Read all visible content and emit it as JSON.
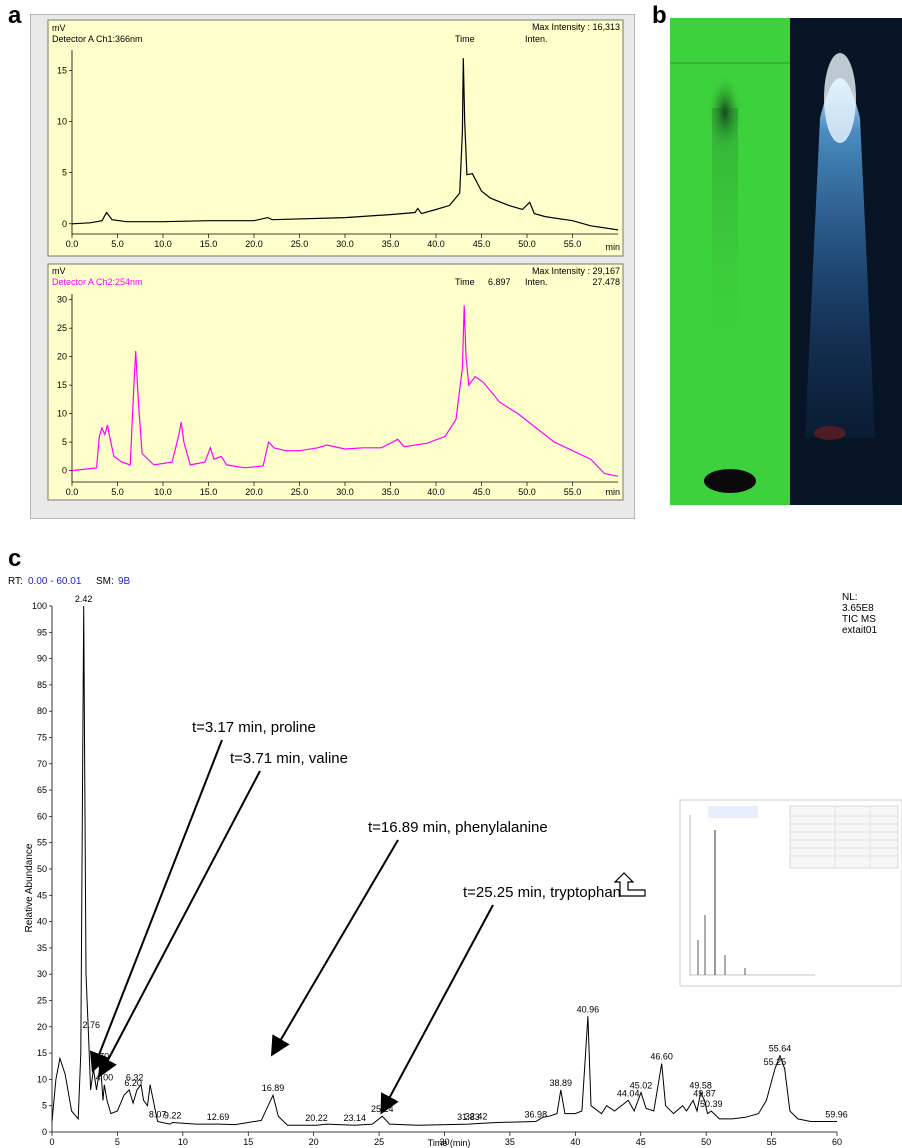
{
  "panel_labels": {
    "a": "a",
    "b": "b",
    "c": "c"
  },
  "colors": {
    "hplc_bg": "#ffffcc",
    "ch1_line": "#000000",
    "ch2_line": "#ff00ff",
    "ms_line": "#000000",
    "tlc_green": "#3dd13d",
    "tlc_uv": "#061426"
  },
  "chart_data": [
    {
      "type": "line",
      "panel": "a-top",
      "ylabel": "mV",
      "detector": "Detector A Ch1:366nm",
      "header_time": "Time",
      "header_inten": "Inten.",
      "max_intensity_label": "Max Intensity : 16,313",
      "xlabel": "min",
      "xlim": [
        0,
        60
      ],
      "ylim": [
        -1,
        17
      ],
      "x_ticks": [
        "0.0",
        "5.0",
        "10.0",
        "15.0",
        "20.0",
        "25.0",
        "30.0",
        "35.0",
        "40.0",
        "45.0",
        "50.0",
        "55.0"
      ],
      "y_ticks": [
        "0",
        "5",
        "10",
        "15"
      ],
      "series": [
        {
          "color": "#000000",
          "points": [
            [
              0,
              0
            ],
            [
              2,
              0.1
            ],
            [
              3.3,
              0.3
            ],
            [
              3.8,
              1.1
            ],
            [
              4.4,
              0.4
            ],
            [
              6,
              0.2
            ],
            [
              10,
              0.2
            ],
            [
              15,
              0.3
            ],
            [
              20,
              0.3
            ],
            [
              21.5,
              0.6
            ],
            [
              22,
              0.4
            ],
            [
              30,
              0.6
            ],
            [
              35,
              0.9
            ],
            [
              37.7,
              1.1
            ],
            [
              38,
              1.5
            ],
            [
              38.4,
              1.0
            ],
            [
              40,
              1.4
            ],
            [
              41.5,
              1.8
            ],
            [
              42.6,
              3.0
            ],
            [
              42.9,
              9.0
            ],
            [
              43.0,
              16.2
            ],
            [
              43.15,
              10.0
            ],
            [
              43.4,
              4.8
            ],
            [
              44,
              4.9
            ],
            [
              45,
              3.2
            ],
            [
              46,
              2.5
            ],
            [
              48,
              1.8
            ],
            [
              49.5,
              1.4
            ],
            [
              50.3,
              2.1
            ],
            [
              50.8,
              1.0
            ],
            [
              52,
              0.7
            ],
            [
              55,
              0.3
            ],
            [
              57,
              -0.2
            ],
            [
              60,
              -0.6
            ]
          ]
        }
      ]
    },
    {
      "type": "line",
      "panel": "a-bottom",
      "ylabel": "mV",
      "detector": "Detector A Ch2:254nm",
      "header_time": "Time",
      "header_time_value": "6.897",
      "header_inten": "Inten.",
      "header_inten_value": "27.478",
      "max_intensity_label": "Max Intensity : 29,167",
      "xlabel": "min",
      "xlim": [
        0,
        60
      ],
      "ylim": [
        -2,
        31
      ],
      "x_ticks": [
        "0.0",
        "5.0",
        "10.0",
        "15.0",
        "20.0",
        "25.0",
        "30.0",
        "35.0",
        "40.0",
        "45.0",
        "50.0",
        "55.0"
      ],
      "y_ticks": [
        "0",
        "5",
        "10",
        "15",
        "20",
        "25",
        "30"
      ],
      "series": [
        {
          "color": "#ff00ff",
          "points": [
            [
              0,
              0
            ],
            [
              2.7,
              0.5
            ],
            [
              3.0,
              6.0
            ],
            [
              3.3,
              7.5
            ],
            [
              3.6,
              6.3
            ],
            [
              3.9,
              8.0
            ],
            [
              4.2,
              5.5
            ],
            [
              4.6,
              2.5
            ],
            [
              5.5,
              1.5
            ],
            [
              6.4,
              1.0
            ],
            [
              6.8,
              15.0
            ],
            [
              7.0,
              21.0
            ],
            [
              7.3,
              12.0
            ],
            [
              7.7,
              3.0
            ],
            [
              9,
              1.0
            ],
            [
              11,
              1.5
            ],
            [
              11.7,
              6.0
            ],
            [
              12,
              8.5
            ],
            [
              12.3,
              5.0
            ],
            [
              13,
              1.0
            ],
            [
              14.6,
              1.5
            ],
            [
              15.2,
              4.0
            ],
            [
              15.6,
              2.0
            ],
            [
              16.4,
              2.5
            ],
            [
              17,
              1.0
            ],
            [
              19,
              0.5
            ],
            [
              21,
              0.8
            ],
            [
              21.6,
              5.0
            ],
            [
              22.2,
              4.0
            ],
            [
              23.5,
              3.5
            ],
            [
              25,
              3.5
            ],
            [
              27,
              4.0
            ],
            [
              28,
              4.5
            ],
            [
              30,
              3.8
            ],
            [
              32,
              4.0
            ],
            [
              34,
              4.0
            ],
            [
              35.8,
              5.5
            ],
            [
              36.5,
              4.2
            ],
            [
              39,
              4.8
            ],
            [
              41,
              6.0
            ],
            [
              42.2,
              9.0
            ],
            [
              42.9,
              18.0
            ],
            [
              43.1,
              29.0
            ],
            [
              43.3,
              20.0
            ],
            [
              43.6,
              15.0
            ],
            [
              44.3,
              16.5
            ],
            [
              45.2,
              15.5
            ],
            [
              47,
              12.0
            ],
            [
              49,
              10.0
            ],
            [
              51,
              7.5
            ],
            [
              53,
              5.0
            ],
            [
              55,
              3.5
            ],
            [
              57,
              2.0
            ],
            [
              58.5,
              -0.5
            ],
            [
              60,
              -1.0
            ]
          ]
        }
      ]
    },
    {
      "type": "line",
      "panel": "c",
      "header_rt": "RT:",
      "header_rt_value": "0.00 - 60.01",
      "header_sm": "SM:",
      "header_sm_value": "9B",
      "info_lines": [
        "NL:",
        "3.65E8",
        "TIC  MS",
        "extait01"
      ],
      "xlabel": "Time (min)",
      "ylabel": "Relative Abundance",
      "xlim": [
        0,
        60
      ],
      "ylim": [
        0,
        100
      ],
      "x_ticks": [
        "0",
        "5",
        "10",
        "15",
        "20",
        "25",
        "30",
        "35",
        "40",
        "45",
        "50",
        "55",
        "60"
      ],
      "y_ticks": [
        "0",
        "5",
        "10",
        "15",
        "20",
        "25",
        "30",
        "35",
        "40",
        "45",
        "50",
        "55",
        "60",
        "65",
        "70",
        "75",
        "80",
        "85",
        "90",
        "95",
        "100"
      ],
      "series": [
        {
          "color": "#000000",
          "points": [
            [
              0,
              2
            ],
            [
              0.3,
              10
            ],
            [
              0.6,
              14
            ],
            [
              1.0,
              11
            ],
            [
              1.5,
              4
            ],
            [
              2.0,
              2.5
            ],
            [
              2.2,
              15
            ],
            [
              2.42,
              100
            ],
            [
              2.6,
              30
            ],
            [
              2.8,
              18
            ],
            [
              2.95,
              8
            ],
            [
              3.17,
              12
            ],
            [
              3.4,
              8
            ],
            [
              3.7,
              13
            ],
            [
              3.9,
              6
            ],
            [
              4.0,
              9
            ],
            [
              4.2,
              6
            ],
            [
              4.5,
              3.5
            ],
            [
              5.0,
              4
            ],
            [
              5.5,
              7
            ],
            [
              5.9,
              8
            ],
            [
              6.2,
              5.5
            ],
            [
              6.5,
              8
            ],
            [
              6.8,
              9
            ],
            [
              7.0,
              6
            ],
            [
              7.3,
              5
            ],
            [
              7.5,
              9
            ],
            [
              7.9,
              4
            ],
            [
              8.07,
              2
            ],
            [
              9,
              1.5
            ],
            [
              9.22,
              1.8
            ],
            [
              11,
              1.5
            ],
            [
              12.69,
              1.5
            ],
            [
              14,
              1.4
            ],
            [
              16,
              2.2
            ],
            [
              16.89,
              7
            ],
            [
              17.3,
              3
            ],
            [
              18,
              1.3
            ],
            [
              20.22,
              1.3
            ],
            [
              21,
              1.5
            ],
            [
              23.14,
              1.3
            ],
            [
              24.5,
              1.5
            ],
            [
              25.24,
              3
            ],
            [
              25.8,
              1.5
            ],
            [
              28,
              1.3
            ],
            [
              31.83,
              1.5
            ],
            [
              32.42,
              1.6
            ],
            [
              34,
              1.8
            ],
            [
              36.98,
              2
            ],
            [
              37.5,
              2.8
            ],
            [
              38,
              3
            ],
            [
              38.6,
              3.5
            ],
            [
              38.89,
              8
            ],
            [
              39.2,
              3.5
            ],
            [
              40,
              3.5
            ],
            [
              40.5,
              4
            ],
            [
              40.96,
              22
            ],
            [
              41.2,
              5
            ],
            [
              42,
              3.5
            ],
            [
              42.4,
              5
            ],
            [
              43,
              4
            ],
            [
              44.04,
              6
            ],
            [
              44.5,
              4
            ],
            [
              45.02,
              7.5
            ],
            [
              45.4,
              4.5
            ],
            [
              46,
              4
            ],
            [
              46.6,
              13
            ],
            [
              46.9,
              5
            ],
            [
              47.5,
              3.5
            ],
            [
              48.2,
              5
            ],
            [
              48.5,
              4
            ],
            [
              49.0,
              6
            ],
            [
              49.3,
              4
            ],
            [
              49.58,
              7.5
            ],
            [
              49.87,
              6
            ],
            [
              50.1,
              3.5
            ],
            [
              50.39,
              4
            ],
            [
              51,
              2.5
            ],
            [
              52,
              2.5
            ],
            [
              53,
              2.8
            ],
            [
              54,
              3.5
            ],
            [
              54.6,
              6
            ],
            [
              55.25,
              12
            ],
            [
              55.64,
              14.5
            ],
            [
              56,
              12
            ],
            [
              56.4,
              4
            ],
            [
              57,
              2.5
            ],
            [
              58,
              2
            ],
            [
              59.96,
              2
            ],
            [
              60,
              2
            ]
          ]
        }
      ],
      "peak_labels": [
        {
          "x": 2.42,
          "y": 100,
          "text": "2.42"
        },
        {
          "x": 3.0,
          "y": 19,
          "text": "2.76"
        },
        {
          "x": 3.7,
          "y": 13,
          "text": "3.70"
        },
        {
          "x": 4.0,
          "y": 9,
          "text": "4.00"
        },
        {
          "x": 6.2,
          "y": 8,
          "text": "6.20"
        },
        {
          "x": 6.32,
          "y": 9,
          "text": "6.32"
        },
        {
          "x": 8.07,
          "y": 2,
          "text": "8.07"
        },
        {
          "x": 9.22,
          "y": 1.8,
          "text": "9.22"
        },
        {
          "x": 12.69,
          "y": 1.5,
          "text": "12.69"
        },
        {
          "x": 16.89,
          "y": 7,
          "text": "16.89"
        },
        {
          "x": 20.22,
          "y": 1.3,
          "text": "20.22"
        },
        {
          "x": 23.14,
          "y": 1.3,
          "text": "23.14"
        },
        {
          "x": 25.24,
          "y": 3,
          "text": "25.24"
        },
        {
          "x": 31.83,
          "y": 1.5,
          "text": "31.83"
        },
        {
          "x": 32.42,
          "y": 1.6,
          "text": "32.42"
        },
        {
          "x": 36.98,
          "y": 2,
          "text": "36.98"
        },
        {
          "x": 38.89,
          "y": 8,
          "text": "38.89"
        },
        {
          "x": 40.96,
          "y": 22,
          "text": "40.96"
        },
        {
          "x": 44.04,
          "y": 6,
          "text": "44.04"
        },
        {
          "x": 45.02,
          "y": 7.5,
          "text": "45.02"
        },
        {
          "x": 46.6,
          "y": 13,
          "text": "46.60"
        },
        {
          "x": 49.58,
          "y": 7.5,
          "text": "49.58"
        },
        {
          "x": 49.87,
          "y": 6,
          "text": "49.87"
        },
        {
          "x": 50.39,
          "y": 4,
          "text": "50.39"
        },
        {
          "x": 55.25,
          "y": 12,
          "text": "55.25"
        },
        {
          "x": 55.64,
          "y": 14.5,
          "text": "55.64"
        },
        {
          "x": 59.96,
          "y": 2,
          "text": "59.96"
        }
      ],
      "annotations": [
        {
          "text": "t=3.17 min, proline",
          "target_x": 3.17,
          "target_y": 12
        },
        {
          "text": "t=3.71 min, valine",
          "target_x": 3.71,
          "target_y": 11
        },
        {
          "text": "t=16.89 min, phenylalanine",
          "target_x": 16.89,
          "target_y": 15
        },
        {
          "text": "t=25.25 min, tryptophan",
          "target_x": 25.25,
          "target_y": 4
        }
      ]
    }
  ]
}
